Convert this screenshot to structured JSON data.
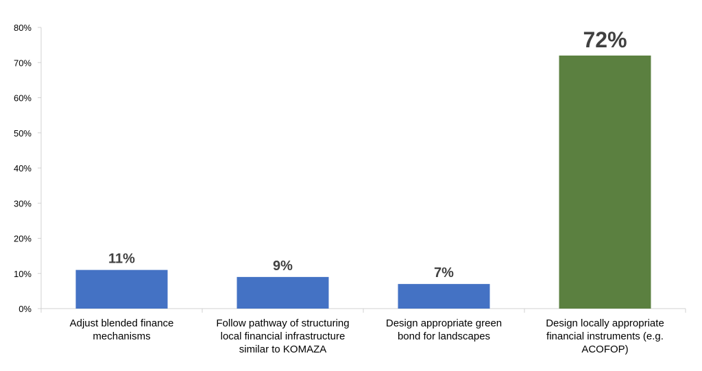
{
  "chart_data": {
    "type": "bar",
    "categories": [
      [
        "Adjust blended finance",
        "mechanisms"
      ],
      [
        "Follow pathway of structuring",
        "local financial infrastructure",
        "similar to KOMAZA"
      ],
      [
        "Design appropriate green",
        "bond for landscapes"
      ],
      [
        "Design locally appropriate",
        "financial instruments (e.g.",
        "ACOFOP)"
      ]
    ],
    "values": [
      11,
      9,
      7,
      72
    ],
    "data_labels": [
      "11%",
      "9%",
      "7%",
      "72%"
    ],
    "bar_colors": [
      "#4472C4",
      "#4472C4",
      "#4472C4",
      "#5B8040"
    ],
    "y_ticks": [
      0,
      10,
      20,
      30,
      40,
      50,
      60,
      70,
      80
    ],
    "y_tick_labels": [
      "0%",
      "10%",
      "20%",
      "30%",
      "40%",
      "50%",
      "60%",
      "70%",
      "80%"
    ],
    "ylim": [
      0,
      80
    ],
    "grid": false,
    "legend": "none",
    "highlight_index": 3
  }
}
